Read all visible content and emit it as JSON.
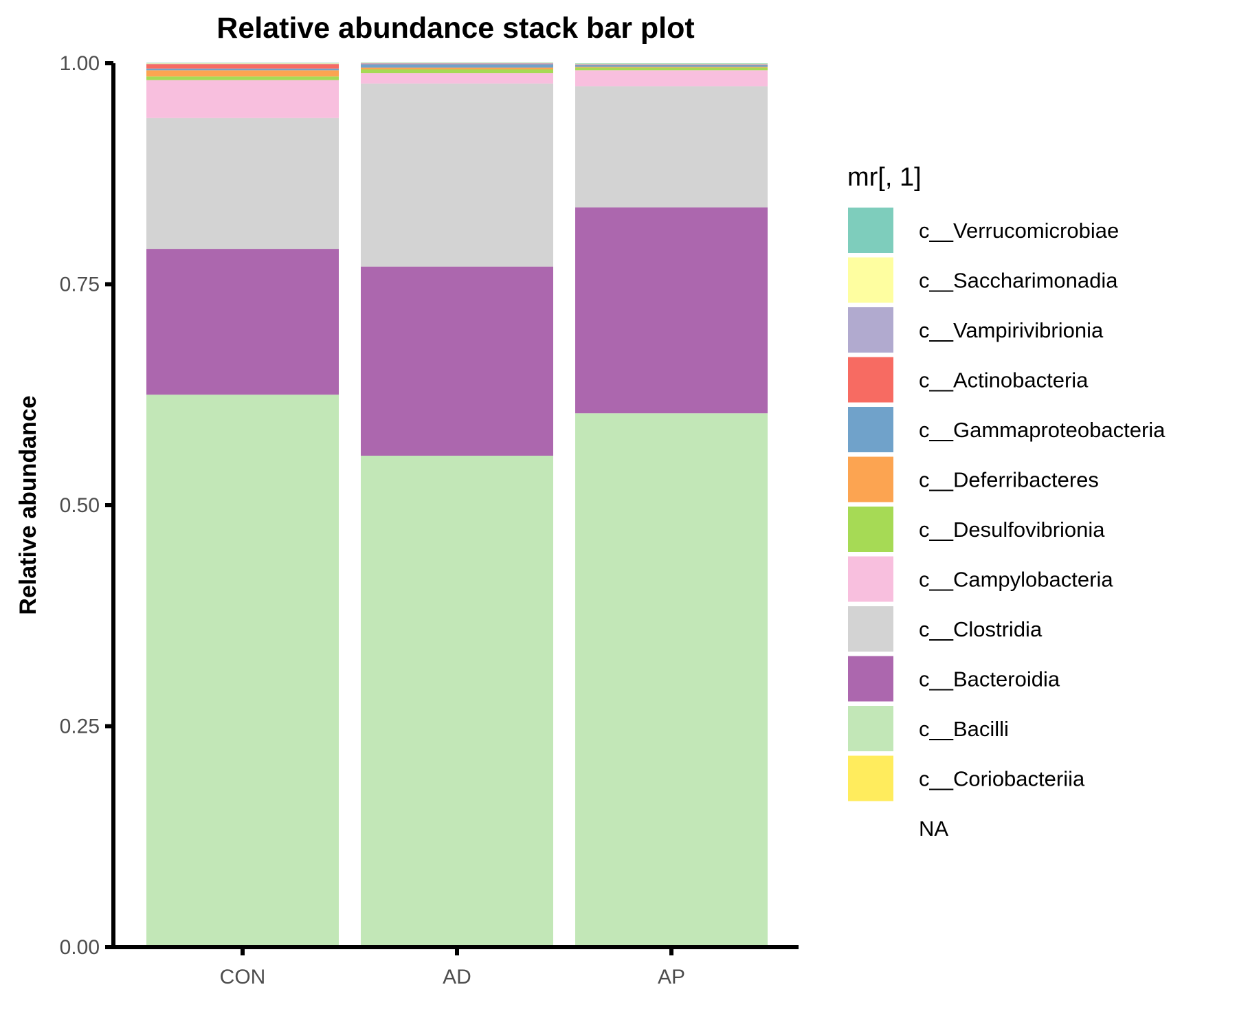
{
  "chart_data": {
    "type": "bar",
    "stacked": true,
    "title": "Relative abundance stack bar plot",
    "xlabel": "",
    "ylabel": "Relative abundance",
    "ylim": [
      0,
      1
    ],
    "yticks": [
      "0.00",
      "0.25",
      "0.50",
      "0.75",
      "1.00"
    ],
    "categories": [
      "CON",
      "AD",
      "AP"
    ],
    "legend_title": "mr[, 1]",
    "legend_position": "right",
    "grid": false,
    "series": [
      {
        "name": "c__Bacilli",
        "color": "#C2E7B7",
        "values": [
          0.625,
          0.556,
          0.604
        ]
      },
      {
        "name": "c__Bacteroidia",
        "color": "#AC67AE",
        "values": [
          0.165,
          0.214,
          0.233
        ]
      },
      {
        "name": "c__Clostridia",
        "color": "#D3D3D3",
        "values": [
          0.148,
          0.207,
          0.137
        ]
      },
      {
        "name": "c__Campylobacteria",
        "color": "#F8BFDE",
        "values": [
          0.043,
          0.012,
          0.018
        ]
      },
      {
        "name": "c__Desulfovibrionia",
        "color": "#A6DA55",
        "values": [
          0.004,
          0.004,
          0.003
        ]
      },
      {
        "name": "c__Deferribacteres",
        "color": "#FCA451",
        "values": [
          0.007,
          0.002,
          0.001
        ]
      },
      {
        "name": "c__Gammaproteobacteria",
        "color": "#70A2CA",
        "values": [
          0.002,
          0.004,
          0.002
        ]
      },
      {
        "name": "c__Actinobacteria",
        "color": "#F76B62",
        "values": [
          0.005,
          0.0005,
          0.0005
        ]
      },
      {
        "name": "c__Vampirivibrionia",
        "color": "#B1AACF",
        "values": [
          0.0005,
          0.0005,
          0.0005
        ]
      },
      {
        "name": "c__Saccharimonadia",
        "color": "#FEFEA0",
        "values": [
          0.0005,
          0.0005,
          0.0005
        ]
      },
      {
        "name": "c__Verrucomicrobiae",
        "color": "#7ECDBC",
        "values": [
          0.0005,
          0.0005,
          0.0005
        ]
      },
      {
        "name": "c__Coriobacteriia",
        "color": "#FFEC5D",
        "values": [
          0,
          0,
          0
        ]
      }
    ],
    "legend": [
      {
        "label": "c__Verrucomicrobiae",
        "color": "#7ECDBC"
      },
      {
        "label": "c__Saccharimonadia",
        "color": "#FEFEA0"
      },
      {
        "label": "c__Vampirivibrionia",
        "color": "#B1AACF"
      },
      {
        "label": "c__Actinobacteria",
        "color": "#F76B62"
      },
      {
        "label": "c__Gammaproteobacteria",
        "color": "#70A2CA"
      },
      {
        "label": "c__Deferribacteres",
        "color": "#FCA451"
      },
      {
        "label": "c__Desulfovibrionia",
        "color": "#A6DA55"
      },
      {
        "label": "c__Campylobacteria",
        "color": "#F8BFDE"
      },
      {
        "label": "c__Clostridia",
        "color": "#D3D3D3"
      },
      {
        "label": "c__Bacteroidia",
        "color": "#AC67AE"
      },
      {
        "label": "c__Bacilli",
        "color": "#C2E7B7"
      },
      {
        "label": "c__Coriobacteriia",
        "color": "#FFEC5D"
      },
      {
        "label": "NA",
        "color": ""
      }
    ]
  }
}
